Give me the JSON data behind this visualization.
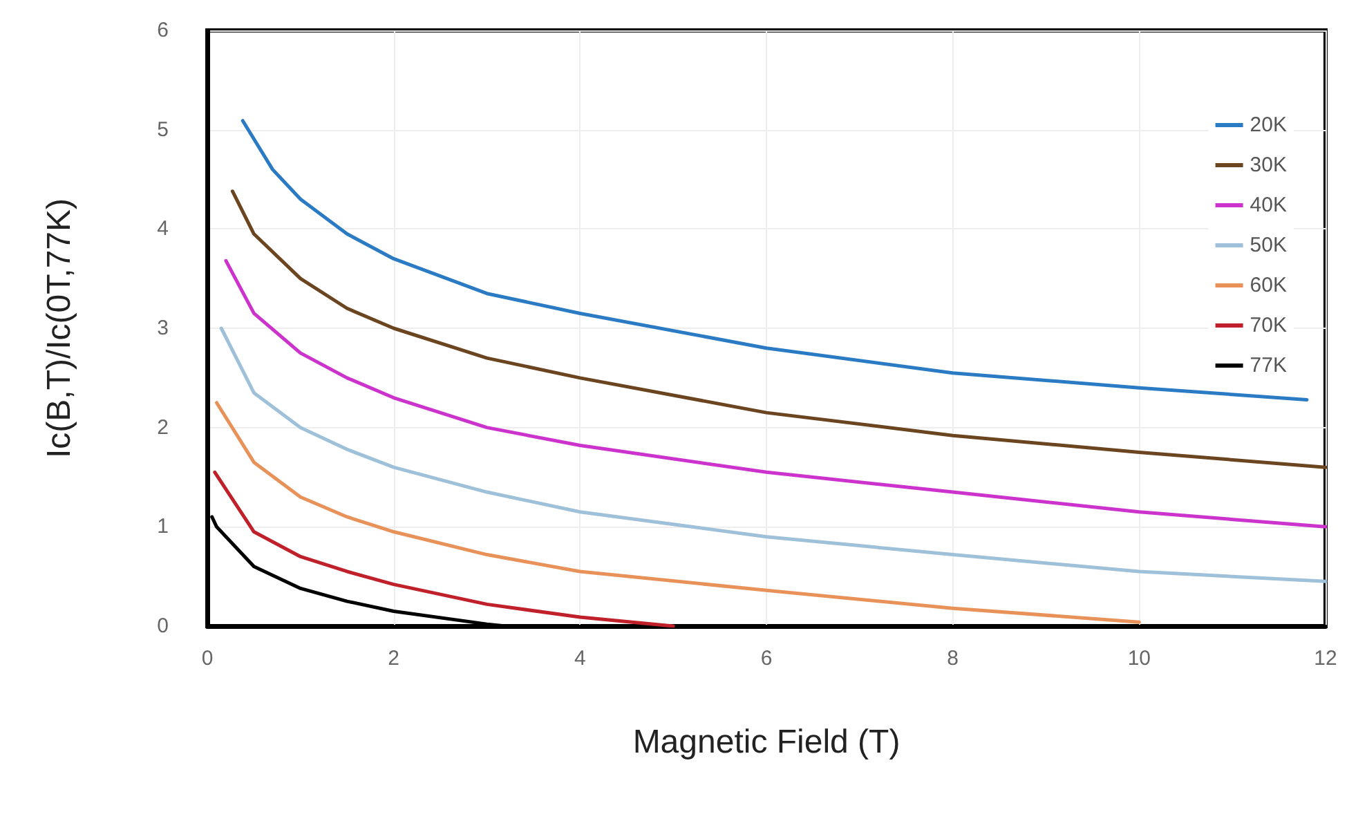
{
  "chart_data": {
    "type": "line",
    "xlabel": "Magnetic Field (T)",
    "ylabel": "Ic(B,T)/Ic(0T,77K)",
    "xlim": [
      0,
      12
    ],
    "xticks": [
      0,
      2,
      4,
      6,
      8,
      10,
      12
    ],
    "ylim": [
      0,
      6
    ],
    "yticks": [
      0,
      1,
      2,
      3,
      4,
      5,
      6
    ],
    "grid": true,
    "legend": "top right",
    "marker": "none",
    "line_style": "solid",
    "series": [
      {
        "name": "20K",
        "color": "#2a7bc4",
        "x": [
          0.38,
          0.7,
          1,
          1.5,
          2,
          3,
          4,
          6,
          8,
          10,
          11.8
        ],
        "values": [
          5.09,
          4.6,
          4.3,
          3.95,
          3.7,
          3.35,
          3.15,
          2.8,
          2.55,
          2.4,
          2.28
        ]
      },
      {
        "name": "30K",
        "color": "#6b4420",
        "x": [
          0.27,
          0.5,
          1,
          1.5,
          2,
          3,
          4,
          6,
          8,
          10,
          12
        ],
        "values": [
          4.38,
          3.95,
          3.5,
          3.2,
          3.0,
          2.7,
          2.5,
          2.15,
          1.92,
          1.75,
          1.6
        ]
      },
      {
        "name": "40K",
        "color": "#cc33cc",
        "x": [
          0.2,
          0.5,
          1,
          1.5,
          2,
          3,
          4,
          6,
          8,
          10,
          12
        ],
        "values": [
          3.68,
          3.15,
          2.75,
          2.5,
          2.3,
          2.0,
          1.82,
          1.55,
          1.35,
          1.15,
          1.0
        ]
      },
      {
        "name": "50K",
        "color": "#9ec0d8",
        "x": [
          0.15,
          0.5,
          1,
          1.5,
          2,
          3,
          4,
          6,
          8,
          10,
          12
        ],
        "values": [
          3.0,
          2.35,
          2.0,
          1.78,
          1.6,
          1.35,
          1.15,
          0.9,
          0.72,
          0.55,
          0.45
        ]
      },
      {
        "name": "60K",
        "color": "#e8925a",
        "x": [
          0.1,
          0.5,
          1,
          1.5,
          2,
          3,
          4,
          6,
          8,
          10
        ],
        "values": [
          2.25,
          1.65,
          1.3,
          1.1,
          0.95,
          0.72,
          0.55,
          0.36,
          0.18,
          0.04
        ]
      },
      {
        "name": "70K",
        "color": "#c0202a",
        "x": [
          0.08,
          0.5,
          1,
          1.5,
          2,
          3,
          4,
          5
        ],
        "values": [
          1.55,
          0.95,
          0.7,
          0.55,
          0.42,
          0.22,
          0.09,
          0.0
        ]
      },
      {
        "name": "77K",
        "color": "#000000",
        "x": [
          0.05,
          0.1,
          0.5,
          1,
          1.5,
          2,
          3,
          3.2
        ],
        "values": [
          1.1,
          1.0,
          0.6,
          0.38,
          0.25,
          0.15,
          0.02,
          0.0
        ]
      }
    ]
  }
}
